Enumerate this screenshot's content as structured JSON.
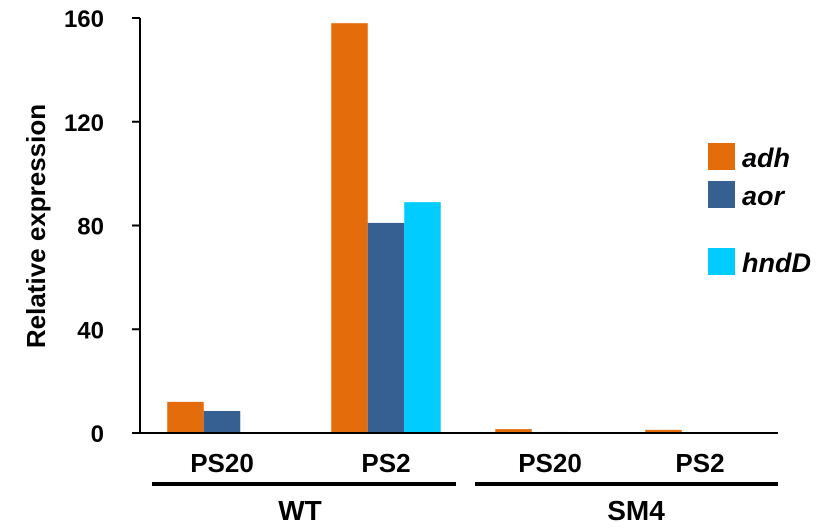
{
  "chart_data": {
    "type": "bar",
    "title": "",
    "xlabel": "",
    "ylabel": "Relative expression",
    "ylim": [
      0,
      160
    ],
    "yticks": [
      0,
      40,
      80,
      120,
      160
    ],
    "grid": false,
    "legend_position": "right",
    "categories": [
      "PS20",
      "PS2",
      "PS20",
      "PS2"
    ],
    "groups": [
      {
        "name": "WT",
        "categories": [
          "PS20",
          "PS2"
        ]
      },
      {
        "name": "SM4",
        "categories": [
          "PS20",
          "PS2"
        ]
      }
    ],
    "series": [
      {
        "name": "adh",
        "color": "#E46C0A",
        "values": [
          12,
          158,
          1.5,
          1.2
        ]
      },
      {
        "name": "aor",
        "color": "#376092",
        "values": [
          8.5,
          81,
          0.4,
          0.3
        ]
      },
      {
        "name": "hndD",
        "color": "#00CCFF",
        "values": [
          0,
          89,
          0,
          0
        ]
      }
    ]
  }
}
